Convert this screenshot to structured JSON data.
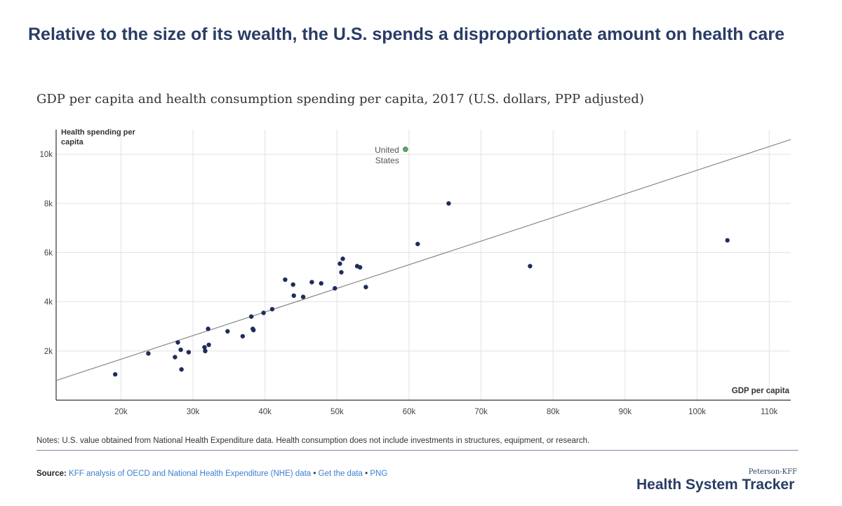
{
  "title": "Relative to the size of its wealth, the U.S. spends a disproportionate amount on health care",
  "subtitle": "GDP per capita and health consumption spending per capita, 2017 (U.S. dollars, PPP adjusted)",
  "colors": {
    "point": "#1f2d5c",
    "highlight": "#5aa867",
    "trend": "#888888",
    "grid": "#e2e2e2",
    "link": "#3a7fd1"
  },
  "chart_data": {
    "type": "scatter",
    "title": "GDP per capita and health consumption spending per capita, 2017 (U.S. dollars, PPP adjusted)",
    "xlabel": "GDP per capita",
    "ylabel": "Health spending per capita",
    "xlim": [
      11000,
      113000
    ],
    "ylim": [
      0,
      11000
    ],
    "xticks": [
      20000,
      30000,
      40000,
      50000,
      60000,
      70000,
      80000,
      90000,
      100000,
      110000
    ],
    "xtick_labels": [
      "20k",
      "30k",
      "40k",
      "50k",
      "60k",
      "70k",
      "80k",
      "90k",
      "100k",
      "110k"
    ],
    "yticks": [
      2000,
      4000,
      6000,
      8000,
      10000
    ],
    "ytick_labels": [
      "2k",
      "4k",
      "6k",
      "8k",
      "10k"
    ],
    "grid": true,
    "trend_line": {
      "x": [
        11000,
        113000
      ],
      "y": [
        800,
        10600
      ]
    },
    "highlight": {
      "label_line1": "United",
      "label_line2": "States",
      "x": 59500,
      "y": 10200
    },
    "points": [
      [
        19200,
        1050
      ],
      [
        23800,
        1900
      ],
      [
        27500,
        1750
      ],
      [
        27900,
        2350
      ],
      [
        28300,
        2050
      ],
      [
        28400,
        1250
      ],
      [
        29400,
        1950
      ],
      [
        31600,
        2150
      ],
      [
        31700,
        2000
      ],
      [
        32100,
        2900
      ],
      [
        32200,
        2250
      ],
      [
        34800,
        2800
      ],
      [
        36900,
        2600
      ],
      [
        38100,
        3400
      ],
      [
        38300,
        2900
      ],
      [
        38400,
        2850
      ],
      [
        39800,
        3550
      ],
      [
        41000,
        3700
      ],
      [
        42800,
        4900
      ],
      [
        43900,
        4700
      ],
      [
        44000,
        4250
      ],
      [
        45300,
        4200
      ],
      [
        46500,
        4800
      ],
      [
        47800,
        4750
      ],
      [
        49700,
        4550
      ],
      [
        50400,
        5550
      ],
      [
        50600,
        5200
      ],
      [
        50800,
        5750
      ],
      [
        52800,
        5450
      ],
      [
        53200,
        5400
      ],
      [
        54000,
        4600
      ],
      [
        61200,
        6350
      ],
      [
        65500,
        8000
      ],
      [
        76800,
        5450
      ],
      [
        104200,
        6500
      ]
    ]
  },
  "notes": "Notes: U.S. value obtained from National Health Expenditure data. Health consumption does not include investments in structures, equipment, or research.",
  "source": {
    "label": "Source:",
    "link1": "KFF analysis of OECD and National Health Expenditure (NHE) data",
    "sep1": "•",
    "link2": "Get the data",
    "sep2": "•",
    "link3": "PNG"
  },
  "brand": {
    "small": "Peterson-KFF",
    "big": "Health System Tracker"
  }
}
